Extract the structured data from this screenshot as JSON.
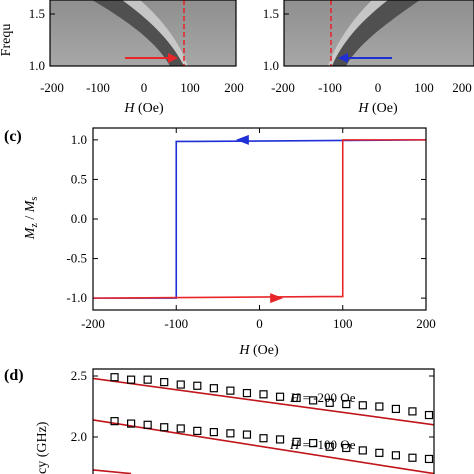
{
  "panels": {
    "a": {
      "ylabel": "Frequ",
      "yticks": [
        "1.5",
        "1.0"
      ],
      "xticks": [
        "-200",
        "-100",
        "0",
        "100",
        "200"
      ],
      "xlabel_var": "H",
      "xlabel_unit": " (Oe)",
      "arrow_color": "#e8262a",
      "dashed_color": "#e8262a"
    },
    "b": {
      "yticks": [
        "1.5",
        "1.0"
      ],
      "xticks": [
        "-200",
        "-100",
        "0",
        "100",
        "200"
      ],
      "xlabel_var": "H",
      "xlabel_unit": " (Oe)",
      "arrow_color": "#1f2fd6",
      "dashed_color": "#e8262a"
    },
    "c": {
      "label": "(c)",
      "ylabel_var": "M",
      "ylabel_sub1": "z",
      "ylabel_mid": " / ",
      "ylabel_var2": "M",
      "ylabel_sub2": "s",
      "xlabel_var": "H",
      "xlabel_unit": " (Oe)"
    },
    "d": {
      "label": "(d)",
      "ylabel": "cy (GHz)",
      "ann1_var": "H",
      "ann1_text": " = -200 Oe",
      "ann2_var": "H",
      "ann2_text": " = -100 Oe"
    }
  },
  "chart_data": [
    {
      "panel": "c",
      "type": "line",
      "xlim": [
        -200,
        200
      ],
      "ylim": [
        -1.15,
        1.15
      ],
      "xticks": [
        -200,
        -100,
        0,
        100,
        200
      ],
      "yticks": [
        1.0,
        0.5,
        0.0,
        -0.5,
        -1.0
      ],
      "ytick_labels": [
        "1.0",
        "0.5",
        "0.0",
        "-0.5",
        "-1.0"
      ],
      "xtick_labels": [
        "-200",
        "-100",
        "0",
        "100",
        "200"
      ],
      "series": [
        {
          "color": "#1f2fd6",
          "x": [
            200,
            -80,
            -100,
            -100,
            -200
          ],
          "y": [
            1.0,
            0.98,
            0.98,
            -1.0,
            -1.0
          ]
        },
        {
          "color": "#e8262a",
          "x": [
            -200,
            80,
            100,
            100,
            200
          ],
          "y": [
            -1.0,
            -0.98,
            -0.98,
            1.0,
            1.0
          ]
        }
      ],
      "arrows": [
        {
          "color": "#1f2fd6",
          "x": -20,
          "y": 1.0,
          "direction": "left"
        },
        {
          "color": "#e8262a",
          "x": 20,
          "y": -1.0,
          "direction": "right"
        }
      ]
    },
    {
      "panel": "d",
      "type": "scatter",
      "ylim": [
        1.65,
        2.5
      ],
      "yticks": [
        2.5,
        2.0
      ],
      "ytick_labels": [
        "2.5",
        "2.0"
      ],
      "xlim": [
        0,
        20
      ],
      "series": [
        {
          "marker": "square",
          "x": [
            1,
            2,
            3,
            4,
            5,
            6,
            7,
            8,
            9,
            10,
            11,
            12,
            13,
            14,
            15,
            16,
            17,
            18,
            19,
            20
          ],
          "y": [
            2.49,
            2.47,
            2.47,
            2.45,
            2.43,
            2.42,
            2.4,
            2.38,
            2.36,
            2.35,
            2.33,
            2.32,
            2.3,
            2.28,
            2.27,
            2.26,
            2.25,
            2.23,
            2.21,
            2.18
          ]
        },
        {
          "marker": "square",
          "x": [
            1,
            2,
            3,
            4,
            5,
            6,
            7,
            8,
            9,
            10,
            11,
            12,
            13,
            14,
            15,
            16,
            17,
            18,
            19,
            20
          ],
          "y": [
            2.13,
            2.11,
            2.1,
            2.08,
            2.07,
            2.05,
            2.04,
            2.03,
            2.02,
            1.99,
            1.98,
            1.96,
            1.95,
            1.92,
            1.91,
            1.89,
            1.87,
            1.85,
            1.83,
            1.82
          ]
        },
        {
          "marker": "square",
          "x": [
            1,
            2
          ],
          "y": [
            1.68,
            1.67
          ]
        }
      ],
      "fits": [
        {
          "color": "#c0151b",
          "x": [
            0,
            20
          ],
          "y": [
            2.48,
            2.1
          ]
        },
        {
          "color": "#c0151b",
          "x": [
            0,
            20
          ],
          "y": [
            2.14,
            1.7
          ]
        },
        {
          "color": "#c0151b",
          "x": [
            0,
            2
          ],
          "y": [
            1.73,
            1.7
          ]
        }
      ]
    }
  ]
}
